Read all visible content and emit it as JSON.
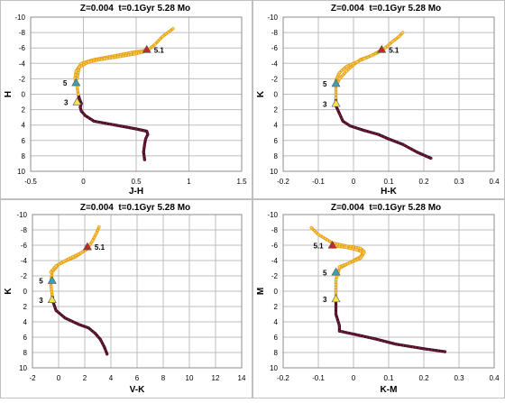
{
  "chart_data": [
    {
      "type": "line",
      "title": "Z=0.004  t=0.1Gyr 5.28 Mo",
      "xlabel": "J-H",
      "ylabel": "H",
      "xlim": [
        -0.5,
        1.5
      ],
      "ylim": [
        10,
        -10
      ],
      "xticks": [
        -0.5,
        0,
        0.5,
        1,
        1.5
      ],
      "xtick_labels": [
        "-0.5",
        "0",
        "0.5",
        "1",
        "1.5"
      ],
      "yticks": [
        -10,
        -8,
        -6,
        -4,
        -2,
        0,
        2,
        4,
        6,
        8,
        10
      ],
      "ytick_labels": [
        "-10",
        "-8",
        "-6",
        "-4",
        "-2",
        "0",
        "2",
        "4",
        "6",
        "8",
        "10"
      ],
      "grid": true,
      "colors": {
        "isochrone_lower": "#8b1a4a",
        "isochrone_lower_edge": "#3a1020",
        "isochrone_upper": "#e8a31c",
        "isochrone_upper_fill": "#f7dc6f",
        "marker_51": "#c0282a",
        "marker_5": "#3aa0b5",
        "marker_3": "#f5e642"
      },
      "series": [
        {
          "segment": "lower",
          "x": [
            0.58,
            0.57,
            0.58,
            0.59,
            0.61,
            0.6,
            0.5,
            0.3,
            0.1,
            0.02,
            -0.02,
            -0.03,
            -0.02,
            -0.04,
            -0.05
          ],
          "y": [
            8.5,
            7.5,
            6.5,
            5.8,
            5.2,
            4.8,
            4.5,
            4.0,
            3.5,
            2.8,
            2.2,
            1.7,
            1.2,
            0.5,
            0.0
          ]
        },
        {
          "segment": "upper",
          "x": [
            -0.05,
            -0.06,
            -0.08,
            -0.07,
            -0.02,
            0.1,
            0.3,
            0.45,
            0.55,
            0.62,
            0.68,
            0.75,
            0.85
          ],
          "y": [
            0.0,
            -1.0,
            -2.0,
            -3.0,
            -4.0,
            -4.5,
            -5.0,
            -5.4,
            -5.6,
            -5.8,
            -6.5,
            -7.5,
            -8.5
          ]
        },
        {
          "segment": "upper",
          "x": [
            -0.06,
            -0.04,
            0.05,
            0.2,
            0.35,
            0.48,
            0.57,
            0.6
          ],
          "y": [
            -2.0,
            -3.5,
            -4.2,
            -4.6,
            -4.9,
            -5.2,
            -5.5,
            -5.7
          ]
        }
      ],
      "markers": [
        {
          "label": "5.1",
          "shape": "triangle",
          "color": "red",
          "x": 0.6,
          "y": -5.8
        },
        {
          "label": "5",
          "shape": "triangle",
          "color": "teal",
          "x": -0.07,
          "y": -1.5
        },
        {
          "label": "3",
          "shape": "triangle",
          "color": "yellow",
          "x": -0.06,
          "y": 1.0
        }
      ]
    },
    {
      "type": "line",
      "title": "Z=0.004  t=0.1Gyr 5.28 Mo",
      "xlabel": "H-K",
      "ylabel": "K",
      "xlim": [
        -0.2,
        0.4
      ],
      "ylim": [
        10,
        -10
      ],
      "xticks": [
        -0.2,
        -0.1,
        0,
        0.1,
        0.2,
        0.3,
        0.4
      ],
      "xtick_labels": [
        "-0.2",
        "-0.1",
        "0",
        "0.1",
        "0.2",
        "0.3",
        "0.4"
      ],
      "yticks": [
        -10,
        -8,
        -6,
        -4,
        -2,
        0,
        2,
        4,
        6,
        8,
        10
      ],
      "ytick_labels": [
        "-10",
        "-8",
        "-6",
        "-4",
        "-2",
        "0",
        "2",
        "4",
        "6",
        "8",
        "10"
      ],
      "grid": true,
      "colors": {
        "isochrone_lower": "#8b1a4a",
        "isochrone_lower_edge": "#3a1020",
        "isochrone_upper": "#e8a31c",
        "isochrone_upper_fill": "#f7dc6f",
        "marker_51": "#c0282a",
        "marker_5": "#3aa0b5",
        "marker_3": "#f5e642"
      },
      "series": [
        {
          "segment": "lower",
          "x": [
            0.22,
            0.18,
            0.14,
            0.1,
            0.07,
            0.03,
            -0.01,
            -0.03,
            -0.04,
            -0.05,
            -0.05
          ],
          "y": [
            8.3,
            7.5,
            6.5,
            5.8,
            5.2,
            4.7,
            4.1,
            3.5,
            2.5,
            1.5,
            0.5
          ]
        },
        {
          "segment": "upper",
          "x": [
            -0.05,
            -0.05,
            -0.04,
            -0.02,
            0.0,
            0.02,
            0.05,
            0.07,
            0.09,
            0.11,
            0.13,
            0.14
          ],
          "y": [
            0.5,
            -1.0,
            -2.0,
            -3.0,
            -3.8,
            -4.5,
            -5.0,
            -5.5,
            -6.0,
            -6.8,
            -7.5,
            -8.0
          ]
        },
        {
          "segment": "upper",
          "x": [
            -0.05,
            -0.04,
            -0.02,
            0.01,
            0.03,
            0.05,
            0.07,
            0.08
          ],
          "y": [
            -1.8,
            -2.8,
            -3.6,
            -4.2,
            -4.6,
            -5.0,
            -5.4,
            -5.7
          ]
        }
      ],
      "markers": [
        {
          "label": "5.1",
          "shape": "triangle",
          "color": "red",
          "x": 0.08,
          "y": -5.8
        },
        {
          "label": "5",
          "shape": "triangle",
          "color": "teal",
          "x": -0.05,
          "y": -1.4
        },
        {
          "label": "3",
          "shape": "triangle",
          "color": "yellow",
          "x": -0.05,
          "y": 1.2
        }
      ]
    },
    {
      "type": "line",
      "title": "Z=0.004  t=0.1Gyr 5.28 Mo",
      "xlabel": "V-K",
      "ylabel": "K",
      "xlim": [
        -2,
        14
      ],
      "ylim": [
        10,
        -10
      ],
      "xticks": [
        -2,
        0,
        2,
        4,
        6,
        8,
        10,
        12,
        14
      ],
      "xtick_labels": [
        "-2",
        "0",
        "2",
        "4",
        "6",
        "8",
        "10",
        "12",
        "14"
      ],
      "yticks": [
        -10,
        -8,
        -6,
        -4,
        -2,
        0,
        2,
        4,
        6,
        8,
        10
      ],
      "ytick_labels": [
        "-10",
        "-8",
        "-6",
        "-4",
        "-2",
        "0",
        "2",
        "4",
        "6",
        "8",
        "10"
      ],
      "grid": true,
      "colors": {
        "isochrone_lower": "#8b1a4a",
        "isochrone_lower_edge": "#3a1020",
        "isochrone_upper": "#e8a31c",
        "isochrone_upper_fill": "#f7dc6f",
        "marker_51": "#c0282a",
        "marker_5": "#3aa0b5",
        "marker_3": "#f5e642"
      },
      "series": [
        {
          "segment": "lower",
          "x": [
            3.7,
            3.5,
            3.2,
            2.8,
            2.3,
            1.5,
            0.5,
            -0.2,
            -0.4,
            -0.5
          ],
          "y": [
            8.2,
            7.3,
            6.3,
            5.5,
            4.8,
            4.3,
            3.5,
            2.5,
            1.5,
            0.5
          ]
        },
        {
          "segment": "upper",
          "x": [
            -0.5,
            -0.6,
            -0.5,
            0.0,
            0.6,
            1.3,
            1.9,
            2.3,
            2.6,
            2.9,
            3.1
          ],
          "y": [
            0.5,
            -1.0,
            -2.5,
            -3.5,
            -4.0,
            -4.5,
            -5.2,
            -5.8,
            -6.6,
            -7.6,
            -8.4
          ]
        },
        {
          "segment": "upper",
          "x": [
            -0.6,
            -0.2,
            0.4,
            1.1,
            1.7,
            2.2
          ],
          "y": [
            -2.5,
            -3.3,
            -3.9,
            -4.5,
            -5.0,
            -5.5
          ]
        }
      ],
      "markers": [
        {
          "label": "5.1",
          "shape": "triangle",
          "color": "red",
          "x": 2.2,
          "y": -5.8
        },
        {
          "label": "5",
          "shape": "triangle",
          "color": "teal",
          "x": -0.5,
          "y": -1.4
        },
        {
          "label": "3",
          "shape": "triangle",
          "color": "yellow",
          "x": -0.5,
          "y": 1.1
        }
      ]
    },
    {
      "type": "line",
      "title": "Z=0.004  t=0.1Gyr 5.28 Mo",
      "xlabel": "K-M",
      "ylabel": "M",
      "xlim": [
        -0.2,
        0.4
      ],
      "ylim": [
        10,
        -10
      ],
      "xticks": [
        -0.2,
        -0.1,
        0,
        0.1,
        0.2,
        0.3,
        0.4
      ],
      "xtick_labels": [
        "-0.2",
        "-0.1",
        "0",
        "0.1",
        "0.2",
        "0.3",
        "0.4"
      ],
      "yticks": [
        -10,
        -8,
        -6,
        -4,
        -2,
        0,
        2,
        4,
        6,
        8,
        10
      ],
      "ytick_labels": [
        "-10",
        "-8",
        "-6",
        "-4",
        "-2",
        "0",
        "2",
        "4",
        "6",
        "8",
        "10"
      ],
      "grid": true,
      "colors": {
        "isochrone_lower": "#8b1a4a",
        "isochrone_lower_edge": "#3a1020",
        "isochrone_upper": "#e8a31c",
        "isochrone_upper_fill": "#f7dc6f",
        "marker_51": "#c0282a",
        "marker_5": "#3aa0b5",
        "marker_3": "#f5e642"
      },
      "series": [
        {
          "segment": "lower",
          "x": [
            0.26,
            0.2,
            0.12,
            0.06,
            0.0,
            -0.04,
            -0.04,
            -0.05,
            -0.05,
            -0.05
          ],
          "y": [
            7.9,
            7.5,
            6.9,
            6.2,
            5.6,
            5.2,
            4.5,
            3.0,
            2.0,
            1.0
          ]
        },
        {
          "segment": "upper",
          "x": [
            -0.05,
            -0.05,
            -0.04,
            -0.02,
            0.0,
            0.02,
            0.03,
            0.02,
            -0.02,
            -0.06,
            -0.1,
            -0.12
          ],
          "y": [
            1.0,
            -1.5,
            -3.0,
            -3.5,
            -4.0,
            -4.5,
            -5.2,
            -5.6,
            -5.9,
            -6.3,
            -7.4,
            -8.3
          ]
        },
        {
          "segment": "upper",
          "x": [
            -0.04,
            -0.01,
            0.02,
            0.03,
            0.01,
            -0.02,
            -0.05
          ],
          "y": [
            -3.2,
            -3.7,
            -4.3,
            -5.0,
            -5.4,
            -5.7,
            -5.9
          ]
        }
      ],
      "markers": [
        {
          "label": "5.1",
          "shape": "triangle",
          "color": "red",
          "x": -0.06,
          "y": -6.0
        },
        {
          "label": "5",
          "shape": "triangle",
          "color": "teal",
          "x": -0.05,
          "y": -2.5
        },
        {
          "label": "3",
          "shape": "triangle",
          "color": "yellow",
          "x": -0.05,
          "y": 1.0
        }
      ]
    }
  ]
}
